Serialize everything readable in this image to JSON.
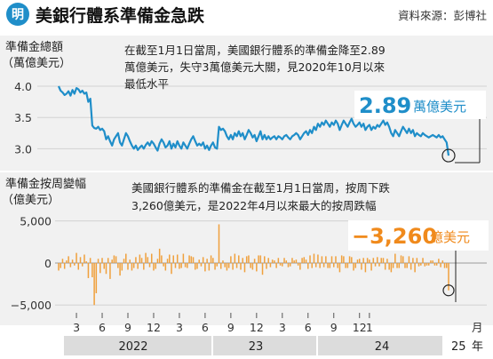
{
  "header": {
    "badge": "明",
    "title": "美銀行體系準備金急跌",
    "source": "資料來源：彭博社"
  },
  "colors": {
    "line": "#1f8ec9",
    "bar": "#f0a03c",
    "callout_blue": "#1f8ec9",
    "callout_orange": "#f08a1c",
    "panel_bg": "#f1f1f1",
    "year_bg": "#dcdcdc"
  },
  "chart_data": [
    {
      "type": "line",
      "ylabel_line1": "準備金總額",
      "ylabel_line2": "（萬億美元）",
      "yticks": [
        "4.0",
        "3.5",
        "3.0"
      ],
      "ytick_values": [
        4.0,
        3.5,
        3.0
      ],
      "ylim": [
        2.82,
        4.1
      ],
      "annotation": "在截至1月1日當周，美國銀行體系的準備金降至2.89萬億美元，失守3萬億美元大關，見2020年10月以來最低水平",
      "annotation_lines": [
        "在截至1月1日當周，美國銀行體系的準備金降至2.89",
        "萬億美元，失守3萬億美元大關，見2020年10月以來",
        "最低水平"
      ],
      "callout_value": "2.89",
      "callout_unit": "萬億美元",
      "x_start": "2022-01",
      "x_end": "2025-01",
      "values": [
        4.0,
        3.93,
        3.9,
        3.86,
        3.88,
        3.92,
        3.85,
        3.94,
        3.88,
        3.97,
        3.95,
        3.9,
        3.93,
        3.88,
        3.9,
        3.75,
        3.8,
        3.37,
        3.33,
        3.32,
        3.35,
        3.3,
        3.32,
        3.28,
        3.15,
        3.2,
        3.12,
        3.05,
        3.15,
        3.2,
        3.25,
        3.1,
        3.05,
        3.15,
        3.25,
        3.2,
        3.12,
        3.05,
        3.0,
        3.05,
        2.98,
        3.02,
        3.05,
        3.0,
        3.06,
        3.1,
        3.05,
        3.12,
        3.08,
        3.02,
        2.97,
        3.08,
        3.15,
        3.1,
        3.02,
        3.05,
        3.12,
        3.0,
        3.08,
        3.02,
        3.12,
        3.05,
        3.0,
        3.1,
        3.05,
        3.0,
        3.08,
        3.15,
        3.2,
        3.12,
        3.05,
        3.08,
        3.05,
        3.1,
        3.0,
        3.05,
        2.98,
        3.05,
        3.1,
        3.02,
        3.0,
        3.35,
        3.3,
        3.32,
        3.28,
        3.2,
        3.15,
        3.22,
        3.15,
        3.25,
        3.2,
        3.28,
        3.2,
        3.25,
        3.15,
        3.22,
        3.3,
        3.25,
        3.18,
        3.22,
        3.12,
        3.2,
        3.28,
        3.15,
        3.22,
        3.15,
        3.2,
        3.15,
        3.18,
        3.2,
        3.15,
        3.2,
        3.18,
        3.15,
        3.2,
        3.22,
        3.18,
        3.15,
        3.2,
        3.22,
        3.25,
        3.22,
        3.15,
        3.2,
        3.25,
        3.28,
        3.22,
        3.3,
        3.25,
        3.35,
        3.3,
        3.4,
        3.35,
        3.42,
        3.38,
        3.45,
        3.4,
        3.35,
        3.42,
        3.38,
        3.45,
        3.4,
        3.3,
        3.38,
        3.45,
        3.4,
        3.35,
        3.42,
        3.48,
        3.4,
        3.35,
        3.38,
        3.42,
        3.35,
        3.4,
        3.3,
        3.35,
        3.38,
        3.3,
        3.35,
        3.32,
        3.38,
        3.35,
        3.4,
        3.45,
        3.38,
        3.42,
        3.35,
        3.25,
        3.2,
        3.3,
        3.25,
        3.2,
        3.28,
        3.35,
        3.3,
        3.25,
        3.32,
        3.25,
        3.3,
        3.2,
        3.25,
        3.22,
        3.2,
        3.25,
        3.22,
        3.2,
        3.18,
        3.2,
        3.22,
        3.2,
        3.18,
        3.22,
        3.18,
        3.2,
        3.15,
        3.1,
        2.89
      ]
    },
    {
      "type": "bar",
      "ylabel_line1": "準備金按周變幅",
      "ylabel_line2": "（億美元）",
      "yticks": [
        "5,000",
        "0",
        "−5,000"
      ],
      "ytick_values": [
        5000,
        0,
        -5000
      ],
      "ylim": [
        -5400,
        5600
      ],
      "annotation_lines": [
        "美國銀行體系的準備金在截至1月1日當周，按周下跌",
        "3,260億美元，是2022年4月以來最大的按周跌幅"
      ],
      "callout_value": "−3,260",
      "callout_unit": "億美元",
      "x_start": "2022-01",
      "x_end": "2025-01",
      "values": [
        -900,
        -600,
        500,
        -700,
        300,
        800,
        -500,
        400,
        -300,
        1200,
        -800,
        700,
        -400,
        1000,
        200,
        -1800,
        600,
        -1700,
        -5000,
        -3600,
        500,
        -1200,
        600,
        -700,
        -1300,
        600,
        -1900,
        400,
        900,
        800,
        -600,
        -1500,
        -900,
        500,
        1100,
        -800,
        400,
        -900,
        -600,
        700,
        -700,
        1000,
        600,
        -800,
        1200,
        700,
        -500,
        1100,
        -900,
        -700,
        500,
        1700,
        900,
        -400,
        -900,
        500,
        1000,
        -1300,
        900,
        -600,
        1000,
        -700,
        -600,
        1100,
        -500,
        -600,
        900,
        800,
        700,
        -800,
        -700,
        400,
        -400,
        700,
        -1000,
        500,
        -900,
        900,
        600,
        -800,
        -400,
        4600,
        -700,
        300,
        -500,
        -900,
        -600,
        800,
        -800,
        1100,
        -600,
        900,
        -800,
        600,
        -1100,
        800,
        900,
        -600,
        -800,
        500,
        -1000,
        900,
        900,
        -1400,
        800,
        -700,
        600,
        -500,
        400,
        300,
        -600,
        600,
        -300,
        -400,
        600,
        300,
        -500,
        -400,
        600,
        300,
        400,
        -300,
        -800,
        600,
        700,
        400,
        -700,
        900,
        -600,
        1100,
        -500,
        1000,
        -600,
        800,
        -500,
        800,
        -600,
        -600,
        800,
        -500,
        800,
        -600,
        -1100,
        900,
        800,
        -600,
        -600,
        800,
        700,
        -900,
        -600,
        400,
        500,
        -800,
        600,
        -1100,
        600,
        400,
        -900,
        600,
        -400,
        700,
        -400,
        600,
        600,
        -800,
        500,
        -800,
        -1100,
        -600,
        1100,
        -600,
        -600,
        900,
        800,
        -600,
        -600,
        800,
        -800,
        600,
        -1100,
        600,
        -400,
        -300,
        600,
        -400,
        -300,
        -300,
        300,
        300,
        -300,
        -300,
        500,
        -500,
        300,
        -600,
        -600,
        -3260
      ]
    }
  ],
  "xaxis": {
    "month_ticks": [
      "3",
      "6",
      "9",
      "12",
      "3",
      "6",
      "9",
      "12",
      "3",
      "6",
      "9",
      "12",
      "1"
    ],
    "month_tick_index": [
      9,
      22,
      35,
      48,
      61,
      74,
      87,
      100,
      113,
      126,
      139,
      152,
      157
    ],
    "month_unit": "月",
    "years": [
      "2022",
      "23",
      "24",
      "25"
    ],
    "year_unit": "年"
  }
}
